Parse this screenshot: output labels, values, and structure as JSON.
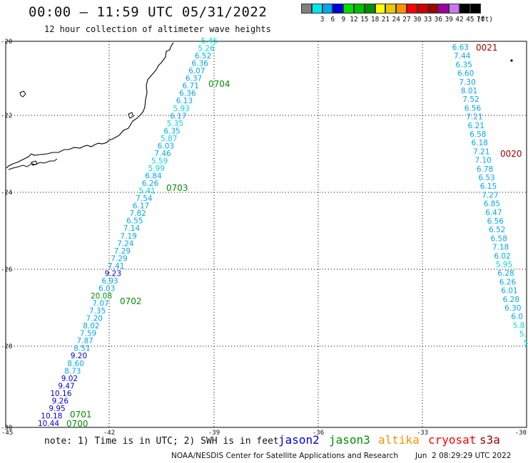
{
  "header": {
    "title": "00:00 – 11:59 UTC 05/31/2022",
    "subtitle": "12 hour collection of altimeter wave heights"
  },
  "legend": {
    "unit_label": "(ft)",
    "items": [
      {
        "label": "",
        "color": "#808080"
      },
      {
        "label": "3",
        "color": "#00e8e8"
      },
      {
        "label": "6",
        "color": "#00a8f0"
      },
      {
        "label": "9",
        "color": "#0000e0"
      },
      {
        "label": "12",
        "color": "#00e000"
      },
      {
        "label": "15",
        "color": "#00c000"
      },
      {
        "label": "18",
        "color": "#009000"
      },
      {
        "label": "21",
        "color": "#ffff00"
      },
      {
        "label": "24",
        "color": "#e8c800"
      },
      {
        "label": "27",
        "color": "#ff9000"
      },
      {
        "label": "30",
        "color": "#ff0000"
      },
      {
        "label": "33",
        "color": "#d00000"
      },
      {
        "label": "36",
        "color": "#a00000"
      },
      {
        "label": "39",
        "color": "#a000a0"
      },
      {
        "label": "42",
        "color": "#c878f0"
      },
      {
        "label": "45",
        "color": "#000000"
      },
      {
        "label": "70",
        "color": "#000000"
      }
    ]
  },
  "axes": {
    "lat_labels": [
      "-20",
      "-22",
      "-24",
      "-26",
      "-28",
      "-30"
    ],
    "lon_labels": [
      "-45",
      "-42",
      "-39",
      "-36",
      "-33",
      "-30"
    ]
  },
  "tracks": {
    "west": {
      "time_labels": [
        "0704",
        "0703",
        "0702",
        "0701",
        "0700"
      ],
      "time_color": "#009000",
      "readings": [
        {
          "v": "5.46",
          "c": "#00d8d8"
        },
        {
          "v": "5.26",
          "c": "#00d8d8"
        },
        {
          "v": "6.52",
          "c": "#00a8f0"
        },
        {
          "v": "6.36",
          "c": "#00a8f0"
        },
        {
          "v": "6.07",
          "c": "#00a8f0"
        },
        {
          "v": "6.37",
          "c": "#00a8f0"
        },
        {
          "v": "6.71",
          "c": "#00a8f0"
        },
        {
          "v": "6.36",
          "c": "#00a8f0"
        },
        {
          "v": "6.13",
          "c": "#00a8f0"
        },
        {
          "v": "5.93",
          "c": "#00d8d8"
        },
        {
          "v": "6.17",
          "c": "#00a8f0"
        },
        {
          "v": "5.35",
          "c": "#00d8d8"
        },
        {
          "v": "6.35",
          "c": "#00a8f0"
        },
        {
          "v": "5.87",
          "c": "#00d8d8"
        },
        {
          "v": "6.03",
          "c": "#00a8f0"
        },
        {
          "v": "7.46",
          "c": "#00a8f0"
        },
        {
          "v": "5.59",
          "c": "#00d8d8"
        },
        {
          "v": "5.99",
          "c": "#00d8d8"
        },
        {
          "v": "6.84",
          "c": "#00a8f0"
        },
        {
          "v": "6.26",
          "c": "#00a8f0"
        },
        {
          "v": "5.41",
          "c": "#00d8d8"
        },
        {
          "v": "7.54",
          "c": "#00a8f0"
        },
        {
          "v": "6.17",
          "c": "#00a8f0"
        },
        {
          "v": "7.82",
          "c": "#00a8f0"
        },
        {
          "v": "6.55",
          "c": "#00a8f0"
        },
        {
          "v": "7.14",
          "c": "#00a8f0"
        },
        {
          "v": "7.19",
          "c": "#00a8f0"
        },
        {
          "v": "7.24",
          "c": "#00a8f0"
        },
        {
          "v": "7.29",
          "c": "#00a8f0"
        },
        {
          "v": "7.29",
          "c": "#00a8f0"
        },
        {
          "v": "7.41",
          "c": "#00a8f0"
        },
        {
          "v": "9.23",
          "c": "#0000e0"
        },
        {
          "v": "6.93",
          "c": "#00a8f0"
        },
        {
          "v": "6.03",
          "c": "#00a8f0"
        },
        {
          "v": "20.08",
          "c": "#009000"
        },
        {
          "v": "7.07",
          "c": "#00a8f0"
        },
        {
          "v": "7.35",
          "c": "#00a8f0"
        },
        {
          "v": "7.20",
          "c": "#00a8f0"
        },
        {
          "v": "8.02",
          "c": "#00a8f0"
        },
        {
          "v": "7.59",
          "c": "#00a8f0"
        },
        {
          "v": "7.87",
          "c": "#00a8f0"
        },
        {
          "v": "8.51",
          "c": "#00a8f0"
        },
        {
          "v": "9.20",
          "c": "#0000e0"
        },
        {
          "v": "8.60",
          "c": "#00a8f0"
        },
        {
          "v": "8.73",
          "c": "#00a8f0"
        },
        {
          "v": "9.02",
          "c": "#0000e0"
        },
        {
          "v": "9.47",
          "c": "#0000e0"
        },
        {
          "v": "10.16",
          "c": "#0000e0"
        },
        {
          "v": "9.26",
          "c": "#0000e0"
        },
        {
          "v": "9.95",
          "c": "#0000e0"
        },
        {
          "v": "10.18",
          "c": "#0000e0"
        },
        {
          "v": "10.44",
          "c": "#0000e0"
        }
      ]
    },
    "east": {
      "time_labels": [
        "0021",
        "0020"
      ],
      "time_color": "#a00000",
      "readings": [
        {
          "v": "6.63",
          "c": "#00a8f0"
        },
        {
          "v": "7.44",
          "c": "#00a8f0"
        },
        {
          "v": "6.35",
          "c": "#00a8f0"
        },
        {
          "v": "6.60",
          "c": "#00a8f0"
        },
        {
          "v": "7.30",
          "c": "#00a8f0"
        },
        {
          "v": "8.01",
          "c": "#00a8f0"
        },
        {
          "v": "7.52",
          "c": "#00a8f0"
        },
        {
          "v": "6.56",
          "c": "#00a8f0"
        },
        {
          "v": "7.21",
          "c": "#00a8f0"
        },
        {
          "v": "6.21",
          "c": "#00a8f0"
        },
        {
          "v": "6.58",
          "c": "#00a8f0"
        },
        {
          "v": "6.18",
          "c": "#00a8f0"
        },
        {
          "v": "7.21",
          "c": "#00a8f0"
        },
        {
          "v": "7.10",
          "c": "#00a8f0"
        },
        {
          "v": "6.78",
          "c": "#00a8f0"
        },
        {
          "v": "6.53",
          "c": "#00a8f0"
        },
        {
          "v": "6.15",
          "c": "#00a8f0"
        },
        {
          "v": "7.27",
          "c": "#00a8f0"
        },
        {
          "v": "6.85",
          "c": "#00a8f0"
        },
        {
          "v": "6.47",
          "c": "#00a8f0"
        },
        {
          "v": "6.56",
          "c": "#00a8f0"
        },
        {
          "v": "6.52",
          "c": "#00a8f0"
        },
        {
          "v": "6.58",
          "c": "#00a8f0"
        },
        {
          "v": "7.18",
          "c": "#00a8f0"
        },
        {
          "v": "6.02",
          "c": "#00a8f0"
        },
        {
          "v": "5.95",
          "c": "#00d8d8"
        },
        {
          "v": "6.28",
          "c": "#00a8f0"
        },
        {
          "v": "6.26",
          "c": "#00a8f0"
        },
        {
          "v": "6.01",
          "c": "#00a8f0"
        },
        {
          "v": "6.28",
          "c": "#00a8f0"
        },
        {
          "v": "6.30",
          "c": "#00a8f0"
        },
        {
          "v": "6.0",
          "c": "#00a8f0"
        },
        {
          "v": "5.8",
          "c": "#00d8d8"
        },
        {
          "v": "5.",
          "c": "#00d8d8"
        },
        {
          "v": "5",
          "c": "#00d8d8"
        }
      ]
    }
  },
  "footer": {
    "note": "note: 1) Time is in UTC; 2) SWH is in feet",
    "satellites": [
      {
        "name": "jason2",
        "color": "#0000e0"
      },
      {
        "name": "jason3",
        "color": "#009000"
      },
      {
        "name": "altika",
        "color": "#ff9000"
      },
      {
        "name": "cryosat",
        "color": "#ff0000"
      },
      {
        "name": "s3a",
        "color": "#a00000"
      }
    ],
    "credit": "NOAA/NESDIS Center for Satellite Applications and Research",
    "credit_date": "Jun  2 08:29:29 UTC 2022"
  }
}
